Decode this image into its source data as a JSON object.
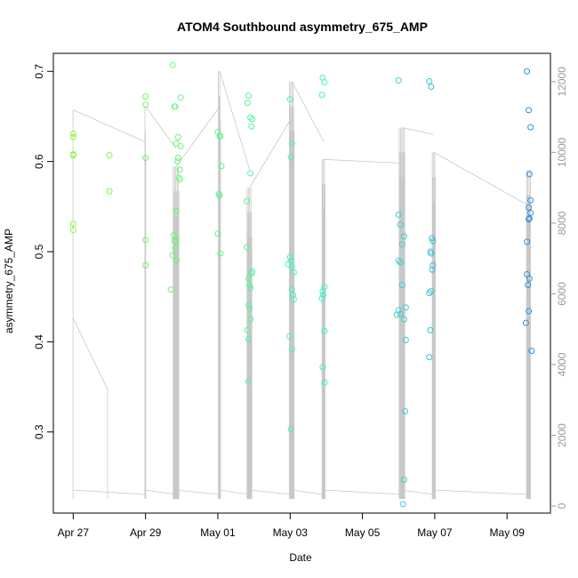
{
  "chart_data": {
    "type": "scatter",
    "title": "ATOM4 Southbound asymmetry_675_AMP",
    "xlabel": "Date",
    "ylabel": "asymmetry_675_AMP",
    "x_ticks": [
      "Apr 27",
      "Apr 29",
      "May 01",
      "May 03",
      "May 05",
      "May 07",
      "May 09"
    ],
    "x_tick_days": [
      0,
      2,
      4,
      6,
      8,
      10,
      12
    ],
    "xlim_days": [
      -0.55,
      13.2
    ],
    "y_ticks": [
      0.3,
      0.4,
      0.5,
      0.6,
      0.7
    ],
    "ylim": [
      0.21,
      0.72
    ],
    "y2_ticks": [
      0,
      2000,
      4000,
      6000,
      8000,
      10000,
      12000
    ],
    "y2lim": [
      -200,
      12800
    ],
    "grid": false,
    "series": [
      {
        "marker": "open-circle",
        "points": [
          [
            0.0,
            0.608
          ],
          [
            0.02,
            0.631
          ],
          [
            0.01,
            0.627
          ],
          [
            0.03,
            0.607
          ],
          [
            0.0,
            0.531
          ],
          [
            0.01,
            0.524
          ],
          [
            0.95,
            0.607
          ],
          [
            0.95,
            0.567
          ],
          [
            -0.02,
            0.672
          ],
          [
            0.0,
            0.663
          ],
          [
            0.02,
            0.604
          ],
          [
            0.05,
            0.513
          ],
          [
            0.07,
            0.485
          ],
          [
            0.75,
            0.707
          ],
          [
            0.8,
            0.661
          ],
          [
            0.82,
            0.661
          ],
          [
            0.85,
            0.62
          ],
          [
            0.9,
            0.627
          ],
          [
            0.88,
            0.6
          ],
          [
            0.9,
            0.604
          ],
          [
            0.92,
            0.582
          ],
          [
            0.95,
            0.58
          ],
          [
            0.97,
            0.671
          ],
          [
            0.97,
            0.617
          ],
          [
            0.95,
            0.591
          ],
          [
            0.85,
            0.545
          ],
          [
            0.78,
            0.518
          ],
          [
            0.8,
            0.512
          ],
          [
            0.85,
            0.512
          ],
          [
            0.82,
            0.504
          ],
          [
            0.86,
            0.49
          ],
          [
            0.75,
            0.496
          ],
          [
            0.7,
            0.458
          ],
          [
            0.0,
            0.633
          ],
          [
            0.05,
            0.628
          ],
          [
            0.07,
            0.628
          ],
          [
            0.1,
            0.595
          ],
          [
            0.03,
            0.564
          ],
          [
            0.05,
            0.562
          ],
          [
            0.0,
            0.52
          ],
          [
            0.07,
            0.498
          ],
          [
            0.82,
            0.665
          ],
          [
            0.85,
            0.673
          ],
          [
            0.9,
            0.649
          ],
          [
            0.95,
            0.647
          ],
          [
            0.93,
            0.639
          ],
          [
            0.9,
            0.587
          ],
          [
            0.8,
            0.556
          ],
          [
            0.8,
            0.505
          ],
          [
            0.95,
            0.478
          ],
          [
            0.93,
            0.476
          ],
          [
            0.85,
            0.47
          ],
          [
            0.88,
            0.463
          ],
          [
            0.9,
            0.46
          ],
          [
            0.85,
            0.441
          ],
          [
            0.88,
            0.437
          ],
          [
            0.9,
            0.425
          ],
          [
            0.82,
            0.413
          ],
          [
            0.85,
            0.403
          ],
          [
            0.85,
            0.356
          ],
          [
            0.0,
            0.669
          ],
          [
            0.05,
            0.62
          ],
          [
            0.02,
            0.605
          ],
          [
            0.0,
            0.494
          ],
          [
            0.02,
            0.49
          ],
          [
            -0.05,
            0.486
          ],
          [
            0.05,
            0.483
          ],
          [
            0.1,
            0.477
          ],
          [
            0.05,
            0.458
          ],
          [
            0.08,
            0.452
          ],
          [
            0.1,
            0.447
          ],
          [
            -0.02,
            0.406
          ],
          [
            0.05,
            0.392
          ],
          [
            0.02,
            0.303
          ],
          [
            0.9,
            0.693
          ],
          [
            0.95,
            0.688
          ],
          [
            0.88,
            0.674
          ],
          [
            0.95,
            0.461
          ],
          [
            0.9,
            0.456
          ],
          [
            0.92,
            0.452
          ],
          [
            0.88,
            0.448
          ],
          [
            0.95,
            0.412
          ],
          [
            0.9,
            0.372
          ],
          [
            0.95,
            0.355
          ],
          [
            0.0,
            0.69
          ],
          [
            0.0,
            0.541
          ],
          [
            0.05,
            0.53
          ],
          [
            0.1,
            0.508
          ],
          [
            0.15,
            0.517
          ],
          [
            0.0,
            0.49
          ],
          [
            0.05,
            0.488
          ],
          [
            0.0,
            0.435
          ],
          [
            0.05,
            0.431
          ],
          [
            -0.05,
            0.43
          ],
          [
            0.1,
            0.463
          ],
          [
            0.2,
            0.438
          ],
          [
            0.15,
            0.425
          ],
          [
            0.2,
            0.402
          ],
          [
            0.18,
            0.323
          ],
          [
            0.15,
            0.247
          ],
          [
            0.12,
            0.22
          ],
          [
            0.85,
            0.689
          ],
          [
            0.9,
            0.683
          ],
          [
            0.92,
            0.515
          ],
          [
            0.95,
            0.512
          ],
          [
            0.88,
            0.5
          ],
          [
            0.9,
            0.498
          ],
          [
            0.95,
            0.485
          ],
          [
            0.93,
            0.48
          ],
          [
            0.9,
            0.456
          ],
          [
            0.85,
            0.454
          ],
          [
            0.88,
            0.413
          ],
          [
            0.85,
            0.383
          ],
          [
            0.55,
            0.7
          ],
          [
            0.6,
            0.657
          ],
          [
            0.65,
            0.638
          ],
          [
            0.62,
            0.586
          ],
          [
            0.65,
            0.557
          ],
          [
            0.6,
            0.549
          ],
          [
            0.65,
            0.543
          ],
          [
            0.62,
            0.537
          ],
          [
            0.6,
            0.536
          ],
          [
            0.55,
            0.511
          ],
          [
            0.55,
            0.475
          ],
          [
            0.62,
            0.47
          ],
          [
            0.58,
            0.463
          ],
          [
            0.6,
            0.434
          ],
          [
            0.52,
            0.421
          ],
          [
            0.68,
            0.39
          ]
        ],
        "point_days": [
          0,
          0,
          0,
          0,
          0,
          0,
          1,
          1,
          2,
          2,
          2,
          2,
          2,
          2.75,
          2.8,
          2.82,
          2.85,
          2.9,
          2.88,
          2.9,
          2.92,
          2.95,
          2.97,
          2.97,
          2.95,
          2.85,
          2.78,
          2.8,
          2.85,
          2.82,
          2.86,
          2.75,
          2.7,
          4,
          4.05,
          4.07,
          4.1,
          4.03,
          4.05,
          4,
          4.07,
          4.82,
          4.85,
          4.9,
          4.95,
          4.93,
          4.9,
          4.8,
          4.8,
          4.95,
          4.93,
          4.85,
          4.88,
          4.9,
          4.85,
          4.88,
          4.9,
          4.82,
          4.85,
          4.85,
          6,
          6.05,
          6.02,
          6,
          6.02,
          5.95,
          6.05,
          6.1,
          6.05,
          6.08,
          6.1,
          5.98,
          6.05,
          6.02,
          6.9,
          6.95,
          6.88,
          6.95,
          6.9,
          6.92,
          6.88,
          6.95,
          6.9,
          6.95,
          9,
          9,
          9.05,
          9.1,
          9.15,
          9,
          9.05,
          9,
          9.05,
          8.95,
          9.1,
          9.2,
          9.15,
          9.2,
          9.18,
          9.15,
          9.12,
          9.85,
          9.9,
          9.92,
          9.95,
          9.88,
          9.9,
          9.95,
          9.93,
          9.9,
          9.85,
          9.88,
          9.85,
          12.55,
          12.6,
          12.65,
          12.62,
          12.65,
          12.6,
          12.65,
          12.62,
          12.6,
          12.55,
          12.55,
          12.62,
          12.58,
          12.6,
          12.52,
          12.68
        ],
        "color_start": "#8cf53c",
        "color_mid": "#3cf5c8",
        "color_end": "#2f8fe0"
      }
    ],
    "secondary_line_color": "#c8c8c8"
  }
}
